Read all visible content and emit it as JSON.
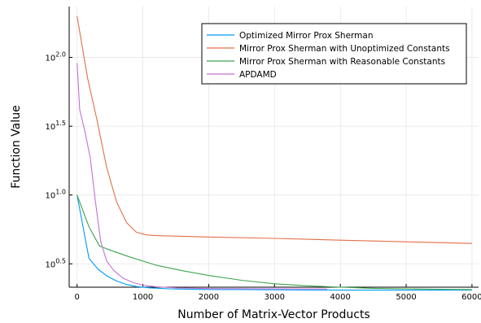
{
  "chart_data": {
    "type": "line",
    "title": "",
    "xlabel": "Number of Matrix-Vector Products",
    "ylabel": "Function Value",
    "xlim": [
      -120,
      6100
    ],
    "ylim_log10": [
      0.33,
      2.37
    ],
    "y_scale": "log10",
    "grid": true,
    "legend_position": "top-right",
    "x_ticks": [
      {
        "value": 0,
        "label": "0"
      },
      {
        "value": 1000,
        "label": "1000"
      },
      {
        "value": 2000,
        "label": "2000"
      },
      {
        "value": 3000,
        "label": "3000"
      },
      {
        "value": 4000,
        "label": "4000"
      },
      {
        "value": 5000,
        "label": "5000"
      },
      {
        "value": 6000,
        "label": "6000"
      }
    ],
    "y_ticks": [
      {
        "log10": 0.5,
        "base": "10",
        "exp": "0.5"
      },
      {
        "log10": 1.0,
        "base": "10",
        "exp": "1.0"
      },
      {
        "log10": 1.5,
        "base": "10",
        "exp": "1.5"
      },
      {
        "log10": 2.0,
        "base": "10",
        "exp": "2.0"
      }
    ],
    "series": [
      {
        "name": "Optimized Mirror Prox Sherman",
        "color": "#009AFA",
        "points_log10": [
          [
            0,
            1.0
          ],
          [
            180,
            0.54
          ],
          [
            320,
            0.46
          ],
          [
            460,
            0.41
          ],
          [
            600,
            0.375
          ],
          [
            750,
            0.35
          ],
          [
            900,
            0.335
          ],
          [
            1100,
            0.325
          ],
          [
            1400,
            0.318
          ],
          [
            1800,
            0.314
          ],
          [
            2500,
            0.312
          ],
          [
            3450,
            0.31
          ],
          [
            4200,
            0.309
          ],
          [
            5000,
            0.309
          ],
          [
            6000,
            0.309
          ]
        ]
      },
      {
        "name": "Mirror Prox Sherman with Unoptimized Constants",
        "color": "#E36F47",
        "points_log10": [
          [
            0,
            2.3
          ],
          [
            160,
            1.85
          ],
          [
            300,
            1.55
          ],
          [
            450,
            1.2
          ],
          [
            600,
            0.95
          ],
          [
            750,
            0.8
          ],
          [
            900,
            0.73
          ],
          [
            1050,
            0.71
          ],
          [
            1200,
            0.705
          ],
          [
            2000,
            0.695
          ],
          [
            3000,
            0.685
          ],
          [
            4000,
            0.672
          ],
          [
            5000,
            0.66
          ],
          [
            6000,
            0.648
          ]
        ]
      },
      {
        "name": "Mirror Prox Sherman with Reasonable Constants",
        "color": "#3EA44E",
        "points_log10": [
          [
            0,
            1.0
          ],
          [
            180,
            0.77
          ],
          [
            340,
            0.63
          ],
          [
            500,
            0.6
          ],
          [
            800,
            0.55
          ],
          [
            1200,
            0.49
          ],
          [
            1600,
            0.45
          ],
          [
            2000,
            0.415
          ],
          [
            2500,
            0.38
          ],
          [
            3000,
            0.355
          ],
          [
            3500,
            0.34
          ],
          [
            4000,
            0.33
          ],
          [
            4500,
            0.322
          ],
          [
            5000,
            0.318
          ],
          [
            5500,
            0.315
          ],
          [
            6000,
            0.313
          ]
        ]
      },
      {
        "name": "APDAMD",
        "color": "#C371D2",
        "points_log10": [
          [
            0,
            1.96
          ],
          [
            40,
            1.62
          ],
          [
            120,
            1.46
          ],
          [
            200,
            1.27
          ],
          [
            280,
            0.95
          ],
          [
            360,
            0.66
          ],
          [
            450,
            0.52
          ],
          [
            560,
            0.45
          ],
          [
            700,
            0.395
          ],
          [
            850,
            0.365
          ],
          [
            1000,
            0.345
          ],
          [
            1200,
            0.333
          ],
          [
            1500,
            0.325
          ],
          [
            2000,
            0.32
          ],
          [
            3000,
            0.318
          ],
          [
            3800,
            0.317
          ]
        ]
      }
    ]
  }
}
